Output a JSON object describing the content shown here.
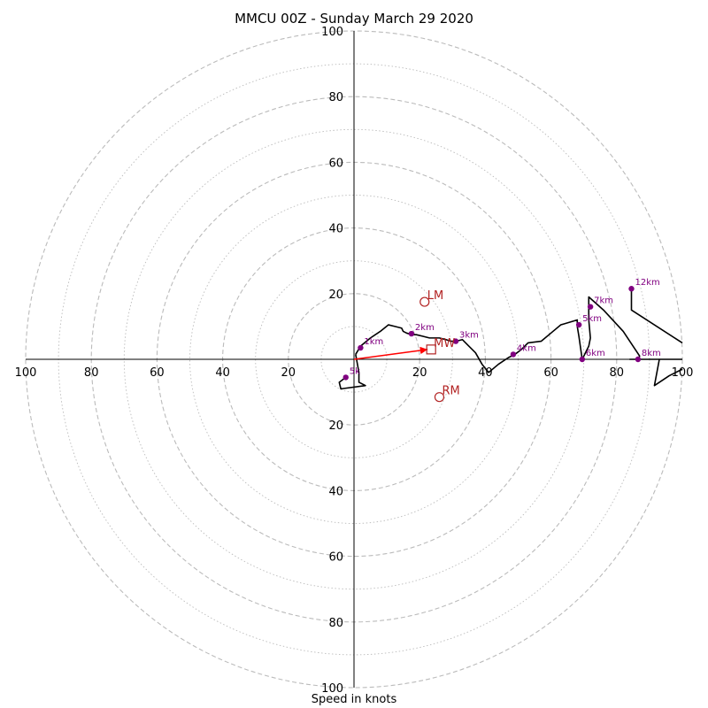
{
  "chart_data": {
    "type": "scatter",
    "title": "MMCU 00Z - Sunday March 29 2020",
    "xlabel": "Speed in knots",
    "ring_max": 100,
    "ring_major_step": 20,
    "ring_minor_step": 10,
    "tick_labels_x": [
      "100",
      "80",
      "60",
      "40",
      "20",
      "20",
      "40",
      "60",
      "80",
      "100"
    ],
    "tick_labels_y": [
      "100",
      "80",
      "60",
      "40",
      "20",
      "20",
      "40",
      "60",
      "80",
      "100"
    ],
    "tick_values": [
      -100,
      -80,
      -60,
      -40,
      -20,
      20,
      40,
      60,
      80,
      100
    ],
    "colors": {
      "trace": "#000000",
      "height_marker": "#800080",
      "motion": "#b22222",
      "mean_wind_arrow": "#ff0000",
      "ring": "#bbbbbb"
    },
    "trace": [
      [
        0.5,
        1.5
      ],
      [
        2,
        4
      ],
      [
        5,
        6.5
      ],
      [
        8,
        8.5
      ],
      [
        10.5,
        10.5
      ],
      [
        12.5,
        10
      ],
      [
        14.5,
        9.5
      ],
      [
        15,
        8.5
      ],
      [
        16,
        8
      ],
      [
        17.5,
        7.5
      ],
      [
        19,
        7.5
      ],
      [
        21,
        7
      ],
      [
        23,
        6.5
      ],
      [
        26,
        6.5
      ],
      [
        28,
        6
      ],
      [
        29.5,
        5.5
      ],
      [
        31,
        5.5
      ],
      [
        33,
        6
      ],
      [
        35,
        4
      ],
      [
        37,
        2
      ],
      [
        39,
        -1.5
      ],
      [
        41,
        -4
      ],
      [
        44,
        -1.5
      ],
      [
        47,
        0.5
      ],
      [
        49,
        1.5
      ],
      [
        51,
        3
      ],
      [
        53,
        5
      ],
      [
        57,
        5.5
      ],
      [
        60,
        8
      ],
      [
        63,
        10.5
      ],
      [
        68,
        12
      ],
      [
        68,
        10
      ],
      [
        68.5,
        7
      ],
      [
        69,
        3.5
      ],
      [
        69.5,
        0
      ],
      [
        70.5,
        2
      ],
      [
        71.5,
        4
      ],
      [
        72,
        6.5
      ],
      [
        71.5,
        12
      ],
      [
        71.5,
        19
      ],
      [
        76,
        15
      ],
      [
        82,
        8.5
      ],
      [
        85,
        4
      ],
      [
        87,
        1
      ],
      [
        86.5,
        0
      ],
      [
        84,
        0
      ],
      [
        88,
        0
      ],
      [
        93,
        0
      ],
      [
        100,
        0
      ]
    ],
    "trace_tail": [
      [
        93,
        0
      ],
      [
        91.5,
        -8
      ],
      [
        96,
        -5
      ],
      [
        100,
        -3
      ]
    ],
    "trace_upper": [
      [
        100,
        5
      ],
      [
        84.5,
        15
      ],
      [
        84.5,
        21
      ]
    ],
    "trace_low": [
      [
        0.5,
        1.5
      ],
      [
        1.5,
        -4
      ],
      [
        1.5,
        -7
      ],
      [
        3.5,
        -8
      ],
      [
        -4,
        -9
      ],
      [
        -4.5,
        -7
      ],
      [
        -2.5,
        -5.5
      ]
    ],
    "heights": [
      {
        "label": "1km",
        "u": 2,
        "v": 3.5
      },
      {
        "label": "2km",
        "u": 17.5,
        "v": 7.8
      },
      {
        "label": "3km",
        "u": 31,
        "v": 5.5
      },
      {
        "label": "4km",
        "u": 48.5,
        "v": 1.5
      },
      {
        "label": "5km",
        "u": 68.5,
        "v": 10.5
      },
      {
        "label": "6km",
        "u": 69.5,
        "v": 0
      },
      {
        "label": "7km",
        "u": 72,
        "v": 16
      },
      {
        "label": "8km",
        "u": 86.5,
        "v": 0
      },
      {
        "label": "12km",
        "u": 84.5,
        "v": 21.5
      },
      {
        "label": "5k",
        "u": -2.5,
        "v": -5.5
      }
    ],
    "storm_motion": [
      {
        "label": "LM",
        "u": 21.5,
        "v": 17.5,
        "marker": "circle"
      },
      {
        "label": "RM",
        "u": 26,
        "v": -11.5,
        "marker": "circle"
      },
      {
        "label": "MW",
        "u": 23.5,
        "v": 3,
        "marker": "square"
      }
    ],
    "mean_wind_vector": {
      "u": 23.5,
      "v": 3
    }
  }
}
